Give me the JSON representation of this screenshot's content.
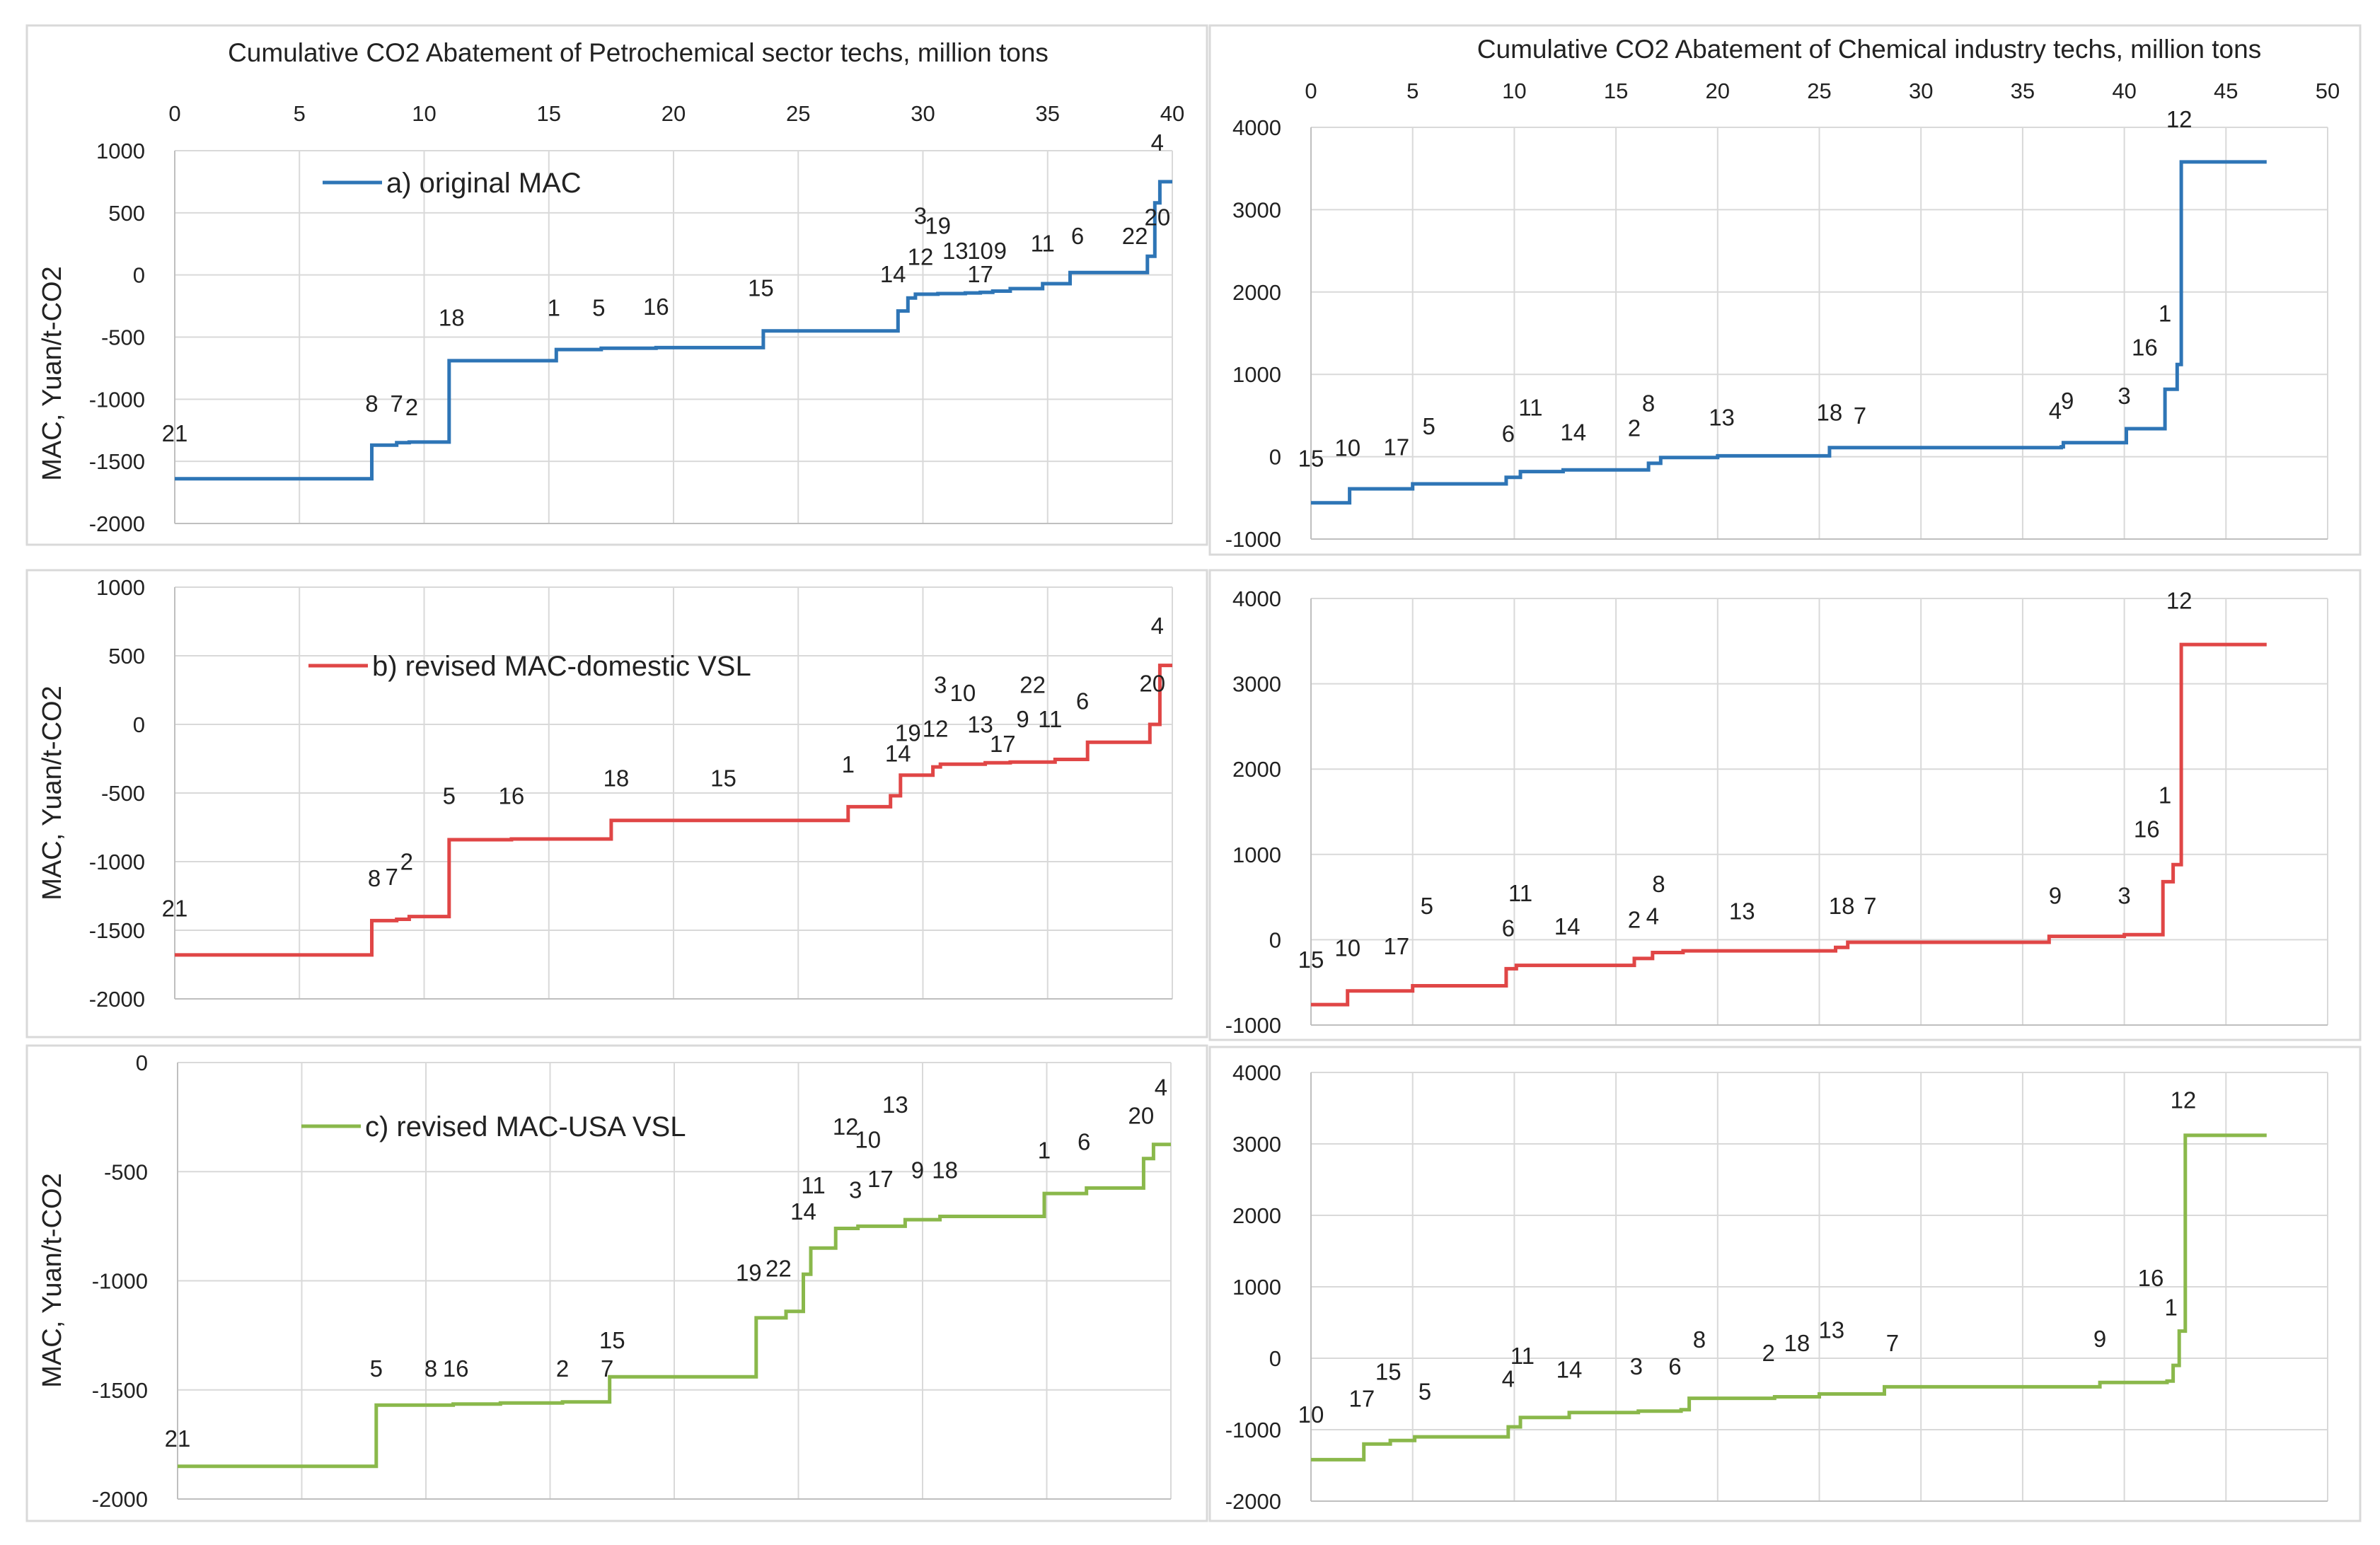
{
  "figure": {
    "left_title": "Cumulative CO2 Abatement of Petrochemical sector techs, million tons",
    "right_title": "Cumulative CO2 Abatement of Chemical industry techs, million tons"
  },
  "chart_data": [
    {
      "id": "left-a",
      "type": "line",
      "step": true,
      "color": "#2e75b6",
      "legend": "a) original MAC",
      "ylabel": "MAC, Yuan/t-CO2",
      "xlim": [
        0,
        40
      ],
      "xticks": [
        0,
        5,
        10,
        15,
        20,
        25,
        30,
        35,
        40
      ],
      "ylim": [
        -2000,
        1000
      ],
      "yticks": [
        -2000,
        -1500,
        -1000,
        -500,
        0,
        500,
        1000
      ],
      "x_axis_labels_on_top": true,
      "steps": [
        [
          0,
          -1640
        ],
        [
          7.9,
          -1370
        ],
        [
          8.9,
          -1350
        ],
        [
          9.4,
          -1345
        ],
        [
          11.0,
          -690
        ],
        [
          15.3,
          -600
        ],
        [
          17.1,
          -590
        ],
        [
          19.3,
          -585
        ],
        [
          23.6,
          -450
        ],
        [
          29.0,
          -290
        ],
        [
          29.4,
          -185
        ],
        [
          29.7,
          -155
        ],
        [
          30.6,
          -150
        ],
        [
          31.7,
          -145
        ],
        [
          32.3,
          -140
        ],
        [
          32.8,
          -130
        ],
        [
          33.5,
          -110
        ],
        [
          34.8,
          -70
        ],
        [
          35.9,
          20
        ],
        [
          39.0,
          150
        ],
        [
          39.3,
          580
        ],
        [
          39.5,
          750
        ],
        [
          40.0,
          750
        ]
      ],
      "labels": [
        {
          "text": "21",
          "x": 0,
          "y": -1340
        },
        {
          "text": "8",
          "x": 7.9,
          "y": -1100
        },
        {
          "text": "7",
          "x": 8.9,
          "y": -1100
        },
        {
          "text": "2",
          "x": 9.5,
          "y": -1130
        },
        {
          "text": "18",
          "x": 11.1,
          "y": -410
        },
        {
          "text": "1",
          "x": 15.2,
          "y": -330
        },
        {
          "text": "5",
          "x": 17.0,
          "y": -330
        },
        {
          "text": "16",
          "x": 19.3,
          "y": -320
        },
        {
          "text": "15",
          "x": 23.5,
          "y": -170
        },
        {
          "text": "14",
          "x": 28.8,
          "y": -60
        },
        {
          "text": "12",
          "x": 29.9,
          "y": 80
        },
        {
          "text": "3",
          "x": 29.9,
          "y": 410
        },
        {
          "text": "19",
          "x": 30.6,
          "y": 330
        },
        {
          "text": "13",
          "x": 31.3,
          "y": 130
        },
        {
          "text": "10",
          "x": 32.3,
          "y": 130
        },
        {
          "text": "9",
          "x": 33.1,
          "y": 130
        },
        {
          "text": "17",
          "x": 32.3,
          "y": -60
        },
        {
          "text": "11",
          "x": 34.8,
          "y": 190
        },
        {
          "text": "6",
          "x": 36.2,
          "y": 250
        },
        {
          "text": "22",
          "x": 38.5,
          "y": 250
        },
        {
          "text": "20",
          "x": 39.4,
          "y": 400
        },
        {
          "text": "4",
          "x": 39.4,
          "y": 1000
        }
      ]
    },
    {
      "id": "left-b",
      "type": "line",
      "step": true,
      "color": "#e04646",
      "legend": "b) revised MAC-domestic VSL",
      "ylabel": "MAC, Yuan/t-CO2",
      "xlim": [
        0,
        40
      ],
      "ylim": [
        -2000,
        1000
      ],
      "yticks": [
        -2000,
        -1500,
        -1000,
        -500,
        0,
        500,
        1000
      ],
      "steps": [
        [
          0,
          -1680
        ],
        [
          7.9,
          -1430
        ],
        [
          8.9,
          -1420
        ],
        [
          9.4,
          -1400
        ],
        [
          11.0,
          -840
        ],
        [
          13.5,
          -835
        ],
        [
          17.5,
          -700
        ],
        [
          27.0,
          -600
        ],
        [
          28.7,
          -520
        ],
        [
          29.1,
          -370
        ],
        [
          30.4,
          -310
        ],
        [
          30.7,
          -290
        ],
        [
          32.5,
          -280
        ],
        [
          33.5,
          -275
        ],
        [
          35.3,
          -255
        ],
        [
          36.6,
          -130
        ],
        [
          39.1,
          0
        ],
        [
          39.5,
          430
        ],
        [
          40.0,
          430
        ]
      ],
      "labels": [
        {
          "text": "21",
          "x": 0,
          "y": -1400
        },
        {
          "text": "8",
          "x": 8.0,
          "y": -1180
        },
        {
          "text": "7",
          "x": 8.7,
          "y": -1170
        },
        {
          "text": "2",
          "x": 9.3,
          "y": -1060
        },
        {
          "text": "5",
          "x": 11.0,
          "y": -580
        },
        {
          "text": "16",
          "x": 13.5,
          "y": -580
        },
        {
          "text": "18",
          "x": 17.7,
          "y": -450
        },
        {
          "text": "15",
          "x": 22.0,
          "y": -450
        },
        {
          "text": "1",
          "x": 27.0,
          "y": -350
        },
        {
          "text": "14",
          "x": 29.0,
          "y": -270
        },
        {
          "text": "19",
          "x": 29.4,
          "y": -120
        },
        {
          "text": "12",
          "x": 30.5,
          "y": -90
        },
        {
          "text": "13",
          "x": 32.3,
          "y": -60
        },
        {
          "text": "3",
          "x": 30.7,
          "y": 230
        },
        {
          "text": "10",
          "x": 31.6,
          "y": 170
        },
        {
          "text": "17",
          "x": 33.2,
          "y": -200
        },
        {
          "text": "9",
          "x": 34.0,
          "y": -20
        },
        {
          "text": "22",
          "x": 34.4,
          "y": 230
        },
        {
          "text": "11",
          "x": 35.1,
          "y": -20
        },
        {
          "text": "6",
          "x": 36.4,
          "y": 110
        },
        {
          "text": "20",
          "x": 39.2,
          "y": 240
        },
        {
          "text": "4",
          "x": 39.4,
          "y": 660
        }
      ]
    },
    {
      "id": "left-c",
      "type": "line",
      "step": true,
      "color": "#8ab84b",
      "legend": "c) revised MAC-USA VSL",
      "ylabel": "MAC, Yuan/t-CO2",
      "xlim": [
        0,
        40
      ],
      "ylim": [
        -2000,
        0
      ],
      "yticks": [
        -2000,
        -1500,
        -1000,
        -500,
        0
      ],
      "steps": [
        [
          0,
          -1850
        ],
        [
          8.0,
          -1570
        ],
        [
          11.1,
          -1565
        ],
        [
          13.0,
          -1560
        ],
        [
          15.5,
          -1555
        ],
        [
          17.4,
          -1440
        ],
        [
          23.3,
          -1170
        ],
        [
          24.5,
          -1140
        ],
        [
          25.2,
          -970
        ],
        [
          25.5,
          -850
        ],
        [
          26.5,
          -760
        ],
        [
          27.4,
          -750
        ],
        [
          29.3,
          -720
        ],
        [
          30.7,
          -705
        ],
        [
          34.9,
          -600
        ],
        [
          36.6,
          -575
        ],
        [
          38.9,
          -440
        ],
        [
          39.3,
          -375
        ],
        [
          40.0,
          -375
        ]
      ],
      "labels": [
        {
          "text": "21",
          "x": 0,
          "y": -1760
        },
        {
          "text": "5",
          "x": 8.0,
          "y": -1440
        },
        {
          "text": "8",
          "x": 10.2,
          "y": -1440
        },
        {
          "text": "16",
          "x": 11.2,
          "y": -1440
        },
        {
          "text": "2",
          "x": 15.5,
          "y": -1440
        },
        {
          "text": "7",
          "x": 17.3,
          "y": -1440
        },
        {
          "text": "15",
          "x": 17.5,
          "y": -1310
        },
        {
          "text": "19",
          "x": 23.0,
          "y": -1000
        },
        {
          "text": "22",
          "x": 24.2,
          "y": -980
        },
        {
          "text": "14",
          "x": 25.2,
          "y": -720
        },
        {
          "text": "11",
          "x": 25.6,
          "y": -600
        },
        {
          "text": "3",
          "x": 27.3,
          "y": -620
        },
        {
          "text": "12",
          "x": 26.9,
          "y": -330
        },
        {
          "text": "10",
          "x": 27.8,
          "y": -390
        },
        {
          "text": "13",
          "x": 28.9,
          "y": -230
        },
        {
          "text": "17",
          "x": 28.3,
          "y": -570
        },
        {
          "text": "9",
          "x": 29.8,
          "y": -530
        },
        {
          "text": "18",
          "x": 30.9,
          "y": -530
        },
        {
          "text": "1",
          "x": 34.9,
          "y": -440
        },
        {
          "text": "6",
          "x": 36.5,
          "y": -400
        },
        {
          "text": "20",
          "x": 38.8,
          "y": -280
        },
        {
          "text": "4",
          "x": 39.6,
          "y": -150
        }
      ]
    },
    {
      "id": "right-a",
      "type": "line",
      "step": true,
      "color": "#2e75b6",
      "xlim": [
        0,
        50
      ],
      "xticks": [
        0,
        5,
        10,
        15,
        20,
        25,
        30,
        35,
        40,
        45,
        50
      ],
      "ylim": [
        -1000,
        4000
      ],
      "yticks": [
        -1000,
        0,
        1000,
        2000,
        3000,
        4000
      ],
      "x_axis_labels_on_top": true,
      "steps": [
        [
          0,
          -560
        ],
        [
          1.9,
          -390
        ],
        [
          5.0,
          -330
        ],
        [
          9.6,
          -250
        ],
        [
          10.3,
          -180
        ],
        [
          12.4,
          -160
        ],
        [
          16.6,
          -80
        ],
        [
          17.2,
          -10
        ],
        [
          20.0,
          10
        ],
        [
          25.5,
          110
        ],
        [
          36.9,
          120
        ],
        [
          37.0,
          170
        ],
        [
          40.1,
          340
        ],
        [
          42.0,
          820
        ],
        [
          42.6,
          1120
        ],
        [
          42.8,
          3580
        ],
        [
          47.0,
          3580
        ]
      ],
      "labels": [
        {
          "text": "15",
          "x": 0,
          "y": -120
        },
        {
          "text": "10",
          "x": 1.8,
          "y": 10
        },
        {
          "text": "17",
          "x": 4.2,
          "y": 20
        },
        {
          "text": "5",
          "x": 5.8,
          "y": 270
        },
        {
          "text": "6",
          "x": 9.7,
          "y": 180
        },
        {
          "text": "11",
          "x": 10.8,
          "y": 500
        },
        {
          "text": "14",
          "x": 12.9,
          "y": 200
        },
        {
          "text": "2",
          "x": 15.9,
          "y": 250
        },
        {
          "text": "8",
          "x": 16.6,
          "y": 550
        },
        {
          "text": "13",
          "x": 20.2,
          "y": 380
        },
        {
          "text": "18",
          "x": 25.5,
          "y": 440
        },
        {
          "text": "7",
          "x": 27.0,
          "y": 400
        },
        {
          "text": "4",
          "x": 36.6,
          "y": 460
        },
        {
          "text": "9",
          "x": 37.2,
          "y": 580
        },
        {
          "text": "3",
          "x": 40.0,
          "y": 640
        },
        {
          "text": "16",
          "x": 41.0,
          "y": 1230
        },
        {
          "text": "1",
          "x": 42.0,
          "y": 1640
        },
        {
          "text": "12",
          "x": 42.7,
          "y": 4000
        }
      ]
    },
    {
      "id": "right-b",
      "type": "line",
      "step": true,
      "color": "#e04646",
      "xlim": [
        0,
        50
      ],
      "ylim": [
        -1000,
        4000
      ],
      "yticks": [
        -1000,
        0,
        1000,
        2000,
        3000,
        4000
      ],
      "steps": [
        [
          0,
          -760
        ],
        [
          1.8,
          -600
        ],
        [
          5.0,
          -540
        ],
        [
          9.6,
          -340
        ],
        [
          10.1,
          -300
        ],
        [
          15.9,
          -220
        ],
        [
          16.8,
          -150
        ],
        [
          18.3,
          -130
        ],
        [
          25.8,
          -90
        ],
        [
          26.4,
          -30
        ],
        [
          36.3,
          40
        ],
        [
          40.0,
          60
        ],
        [
          41.9,
          680
        ],
        [
          42.4,
          880
        ],
        [
          42.8,
          3460
        ],
        [
          47.0,
          3460
        ]
      ],
      "labels": [
        {
          "text": "15",
          "x": 0,
          "y": -330
        },
        {
          "text": "10",
          "x": 1.8,
          "y": -190
        },
        {
          "text": "17",
          "x": 4.2,
          "y": -170
        },
        {
          "text": "5",
          "x": 5.7,
          "y": 300
        },
        {
          "text": "6",
          "x": 9.7,
          "y": 40
        },
        {
          "text": "11",
          "x": 10.3,
          "y": 450
        },
        {
          "text": "14",
          "x": 12.6,
          "y": 60
        },
        {
          "text": "2",
          "x": 15.9,
          "y": 140
        },
        {
          "text": "4",
          "x": 16.8,
          "y": 180
        },
        {
          "text": "8",
          "x": 17.1,
          "y": 560
        },
        {
          "text": "13",
          "x": 21.2,
          "y": 240
        },
        {
          "text": "18",
          "x": 26.1,
          "y": 300
        },
        {
          "text": "7",
          "x": 27.5,
          "y": 300
        },
        {
          "text": "9",
          "x": 36.6,
          "y": 420
        },
        {
          "text": "3",
          "x": 40.0,
          "y": 420
        },
        {
          "text": "16",
          "x": 41.1,
          "y": 1200
        },
        {
          "text": "1",
          "x": 42.0,
          "y": 1600
        },
        {
          "text": "12",
          "x": 42.7,
          "y": 3880
        }
      ]
    },
    {
      "id": "right-c",
      "type": "line",
      "step": true,
      "color": "#8ab84b",
      "xlim": [
        0,
        50
      ],
      "ylim": [
        -2000,
        4000
      ],
      "yticks": [
        -2000,
        -1000,
        0,
        1000,
        2000,
        3000,
        4000
      ],
      "steps": [
        [
          0,
          -1420
        ],
        [
          2.6,
          -1200
        ],
        [
          3.9,
          -1150
        ],
        [
          5.1,
          -1100
        ],
        [
          9.7,
          -960
        ],
        [
          10.3,
          -830
        ],
        [
          12.7,
          -760
        ],
        [
          16.1,
          -740
        ],
        [
          18.2,
          -720
        ],
        [
          18.6,
          -560
        ],
        [
          22.8,
          -540
        ],
        [
          25.0,
          -500
        ],
        [
          28.2,
          -400
        ],
        [
          38.8,
          -340
        ],
        [
          42.1,
          -320
        ],
        [
          42.4,
          -100
        ],
        [
          42.7,
          380
        ],
        [
          43.0,
          3120
        ],
        [
          47.0,
          3120
        ]
      ],
      "labels": [
        {
          "text": "10",
          "x": 0,
          "y": -900
        },
        {
          "text": "17",
          "x": 2.5,
          "y": -680
        },
        {
          "text": "15",
          "x": 3.8,
          "y": -300
        },
        {
          "text": "5",
          "x": 5.6,
          "y": -580
        },
        {
          "text": "4",
          "x": 9.7,
          "y": -400
        },
        {
          "text": "11",
          "x": 10.4,
          "y": -80
        },
        {
          "text": "14",
          "x": 12.7,
          "y": -270
        },
        {
          "text": "3",
          "x": 16.0,
          "y": -230
        },
        {
          "text": "6",
          "x": 17.9,
          "y": -230
        },
        {
          "text": "8",
          "x": 19.1,
          "y": 150
        },
        {
          "text": "2",
          "x": 22.5,
          "y": -40
        },
        {
          "text": "18",
          "x": 23.9,
          "y": 100
        },
        {
          "text": "13",
          "x": 25.6,
          "y": 280
        },
        {
          "text": "7",
          "x": 28.6,
          "y": 100
        },
        {
          "text": "9",
          "x": 38.8,
          "y": 160
        },
        {
          "text": "16",
          "x": 41.3,
          "y": 1010
        },
        {
          "text": "1",
          "x": 42.3,
          "y": 600
        },
        {
          "text": "12",
          "x": 42.9,
          "y": 3500
        }
      ]
    }
  ]
}
